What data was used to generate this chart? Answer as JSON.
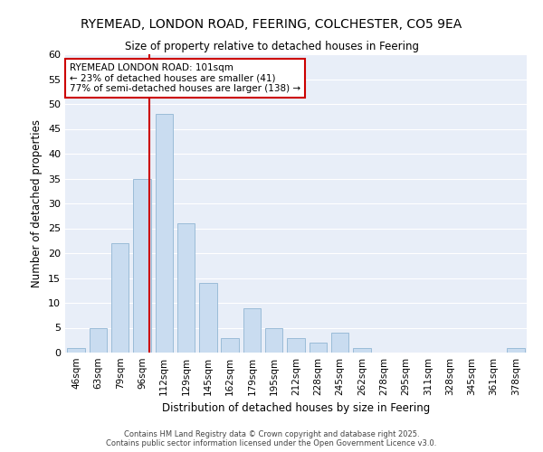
{
  "title_line1": "RYEMEAD, LONDON ROAD, FEERING, COLCHESTER, CO5 9EA",
  "title_line2": "Size of property relative to detached houses in Feering",
  "xlabel": "Distribution of detached houses by size in Feering",
  "ylabel": "Number of detached properties",
  "categories": [
    "46sqm",
    "63sqm",
    "79sqm",
    "96sqm",
    "112sqm",
    "129sqm",
    "145sqm",
    "162sqm",
    "179sqm",
    "195sqm",
    "212sqm",
    "228sqm",
    "245sqm",
    "262sqm",
    "278sqm",
    "295sqm",
    "311sqm",
    "328sqm",
    "345sqm",
    "361sqm",
    "378sqm"
  ],
  "values": [
    1,
    5,
    22,
    35,
    48,
    26,
    14,
    3,
    9,
    5,
    3,
    2,
    4,
    1,
    0,
    0,
    0,
    0,
    0,
    0,
    1
  ],
  "bar_color": "#c9dcf0",
  "bar_edge_color": "#9bbcd8",
  "background_color": "#e8eef8",
  "grid_color": "#ffffff",
  "vline_color": "#cc0000",
  "annotation_text": "RYEMEAD LONDON ROAD: 101sqm\n← 23% of detached houses are smaller (41)\n77% of semi-detached houses are larger (138) →",
  "annotation_box_color": "#ffffff",
  "annotation_box_edge_color": "#cc0000",
  "ylim": [
    0,
    60
  ],
  "yticks": [
    0,
    5,
    10,
    15,
    20,
    25,
    30,
    35,
    40,
    45,
    50,
    55,
    60
  ],
  "footnote": "Contains HM Land Registry data © Crown copyright and database right 2025.\nContains public sector information licensed under the Open Government Licence v3.0.",
  "bar_width": 0.8
}
